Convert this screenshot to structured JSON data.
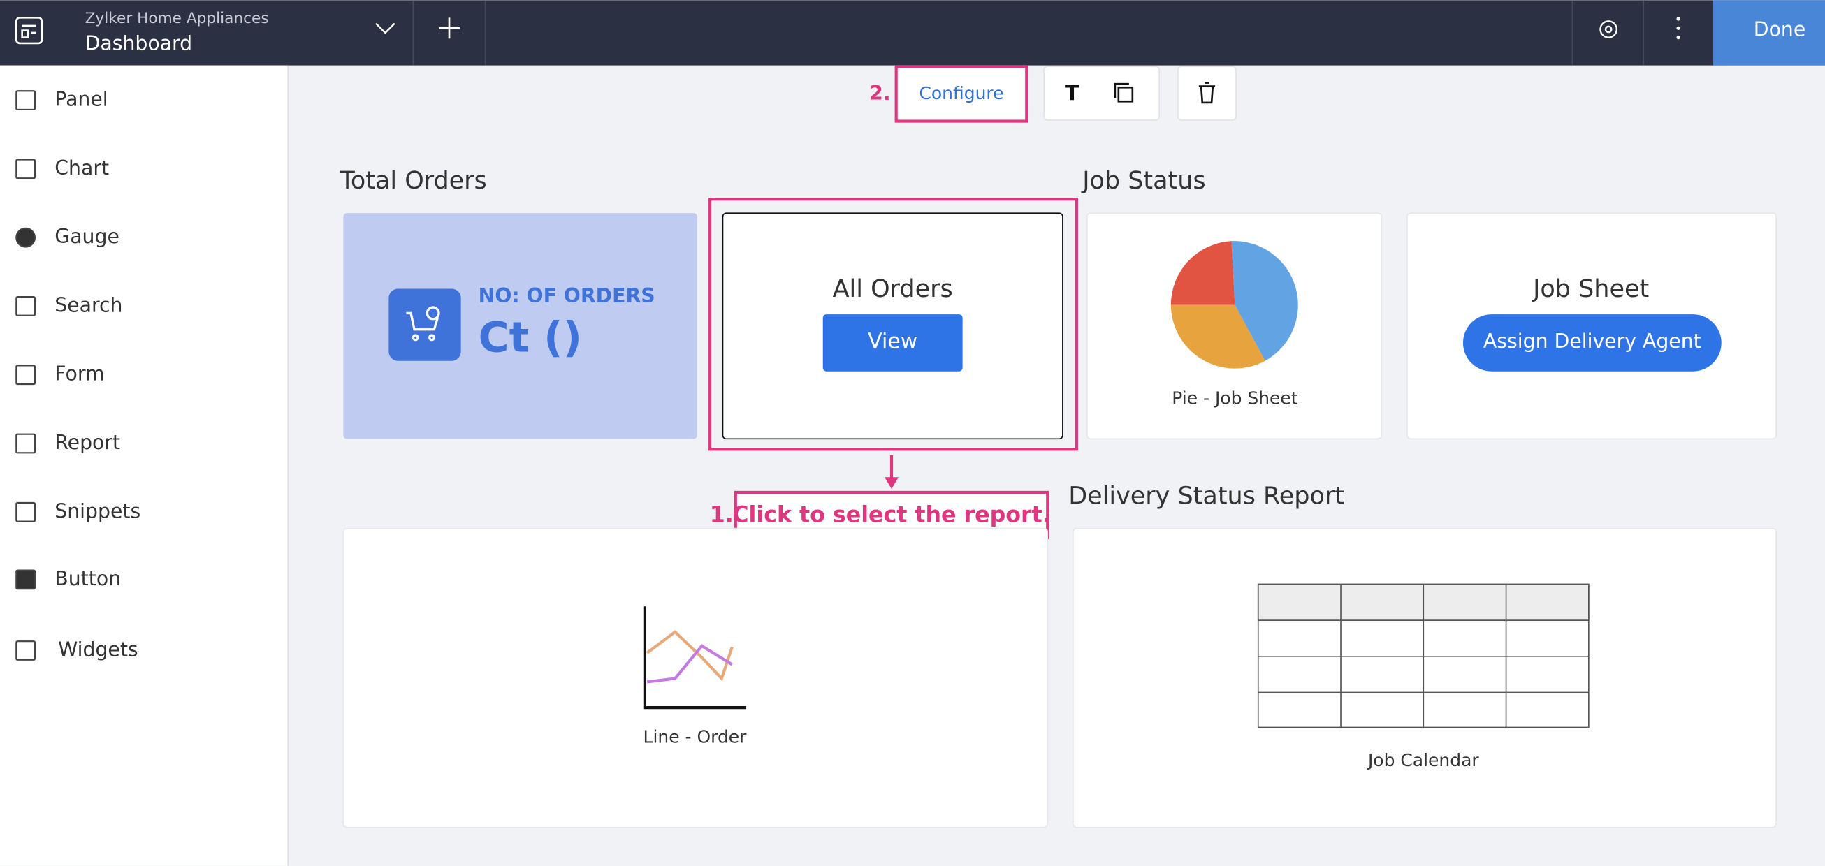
{
  "header": {
    "app_name": "Zylker Home Appliances",
    "page_title": "Dashboard",
    "done_button": "Done"
  },
  "sidebar": {
    "items": [
      "Panel",
      "Chart",
      "Gauge",
      "Search",
      "Form",
      "Report",
      "Snippets",
      "Button",
      "Widgets"
    ]
  },
  "toolbar": {
    "configure": "Configure",
    "text_tool": "T"
  },
  "sections": {
    "total_orders": "Total Orders",
    "job_status": "Job Status",
    "delivery_status_report": "Delivery Status Report"
  },
  "widgets": {
    "orders_card": {
      "label": "NO: OF ORDERS",
      "value": "Ct ()"
    },
    "all_orders": {
      "title": "All Orders",
      "button": "View"
    },
    "pie": {
      "caption": "Pie - Job Sheet"
    },
    "job_sheet": {
      "title": "Job Sheet",
      "button": "Assign Delivery Agent"
    },
    "line": {
      "caption": "Line - Order"
    },
    "calendar": {
      "caption": "Job Calendar"
    }
  },
  "annotations": {
    "step1_number": "1.",
    "step1_text": "Click to select the report.",
    "step2_number": "2."
  }
}
